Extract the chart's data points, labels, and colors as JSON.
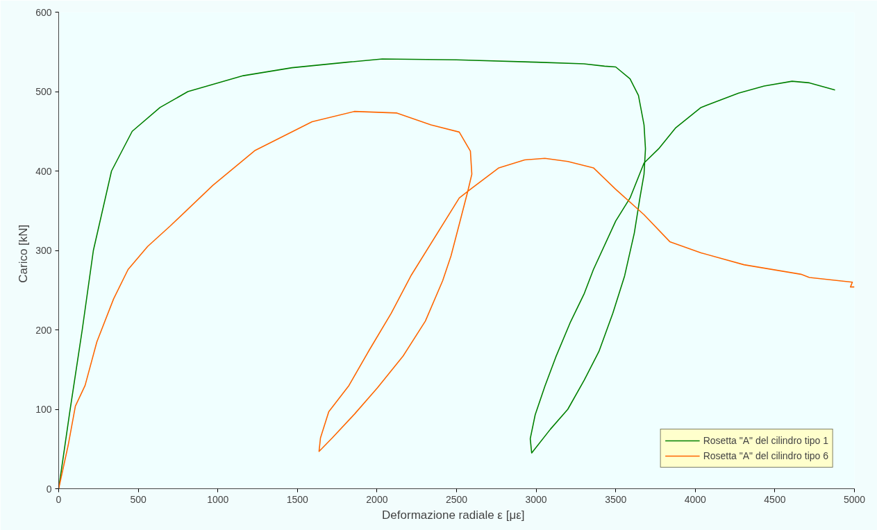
{
  "chart_data": {
    "type": "line",
    "xlabel": "Deformazione radiale ε   [με]",
    "ylabel": "Carico   [kN]",
    "xlim": [
      0,
      5000
    ],
    "ylim": [
      0,
      600
    ],
    "xticks": [
      0,
      500,
      1000,
      1500,
      2000,
      2500,
      3000,
      3500,
      4000,
      4500,
      5000
    ],
    "yticks": [
      0,
      100,
      200,
      300,
      400,
      500,
      600
    ],
    "grid": false,
    "legend": "bottom right",
    "marker": "none",
    "line_style": "solid",
    "series": [
      {
        "name": "Rosetta \"A\" del cilindro tipo 1",
        "color": "#008000",
        "x": [
          0,
          70,
          148,
          218,
          332,
          462,
          637,
          812,
          1160,
          1466,
          1815,
          2033,
          2500,
          3000,
          3300,
          3430,
          3500,
          3590,
          3643,
          3678,
          3687,
          3678,
          3652,
          3617,
          3556,
          3482,
          3395,
          3303,
          3199,
          3090,
          2972,
          2963,
          2994,
          3055,
          3124,
          3216,
          3303,
          3360,
          3500,
          3590,
          3678,
          3770,
          3875,
          4036,
          4272,
          4433,
          4608,
          4717,
          4843,
          4878
        ],
        "values": [
          0,
          97,
          200,
          300,
          400,
          450,
          480,
          500,
          520,
          530,
          537,
          541,
          540,
          537,
          535,
          532,
          531,
          516,
          495,
          458,
          428,
          396,
          366,
          322,
          268,
          221,
          173,
          137,
          100,
          75,
          45,
          63,
          93,
          129,
          166,
          210,
          246,
          276,
          337,
          366,
          410,
          428,
          454,
          480,
          498,
          507,
          513,
          511,
          504,
          502
        ]
      },
      {
        "name": "Rosetta \"A\" del cilindro tipo 6",
        "color": "#ff6600",
        "x": [
          0,
          60,
          105,
          166,
          240,
          345,
          436,
          559,
          702,
          969,
          1235,
          1592,
          1859,
          2125,
          2339,
          2517,
          2587,
          2596,
          2570,
          2517,
          2465,
          2413,
          2304,
          2164,
          2003,
          1859,
          1719,
          1636,
          1645,
          1697,
          1824,
          1950,
          2090,
          2216,
          2517,
          2587,
          2766,
          2928,
          3055,
          3199,
          3360,
          3500,
          3678,
          3840,
          4036,
          4306,
          4664,
          4717,
          4987,
          4975,
          5000
        ],
        "values": [
          0,
          55,
          104,
          130,
          185,
          239,
          276,
          305,
          331,
          382,
          426,
          462,
          475,
          473,
          458,
          449,
          425,
          396,
          374,
          333,
          293,
          262,
          211,
          167,
          127,
          94,
          64,
          47,
          64,
          97,
          130,
          174,
          221,
          269,
          366,
          377,
          404,
          414,
          416,
          412,
          404,
          377,
          345,
          311,
          297,
          282,
          270,
          266,
          260,
          254,
          254
        ]
      }
    ]
  }
}
